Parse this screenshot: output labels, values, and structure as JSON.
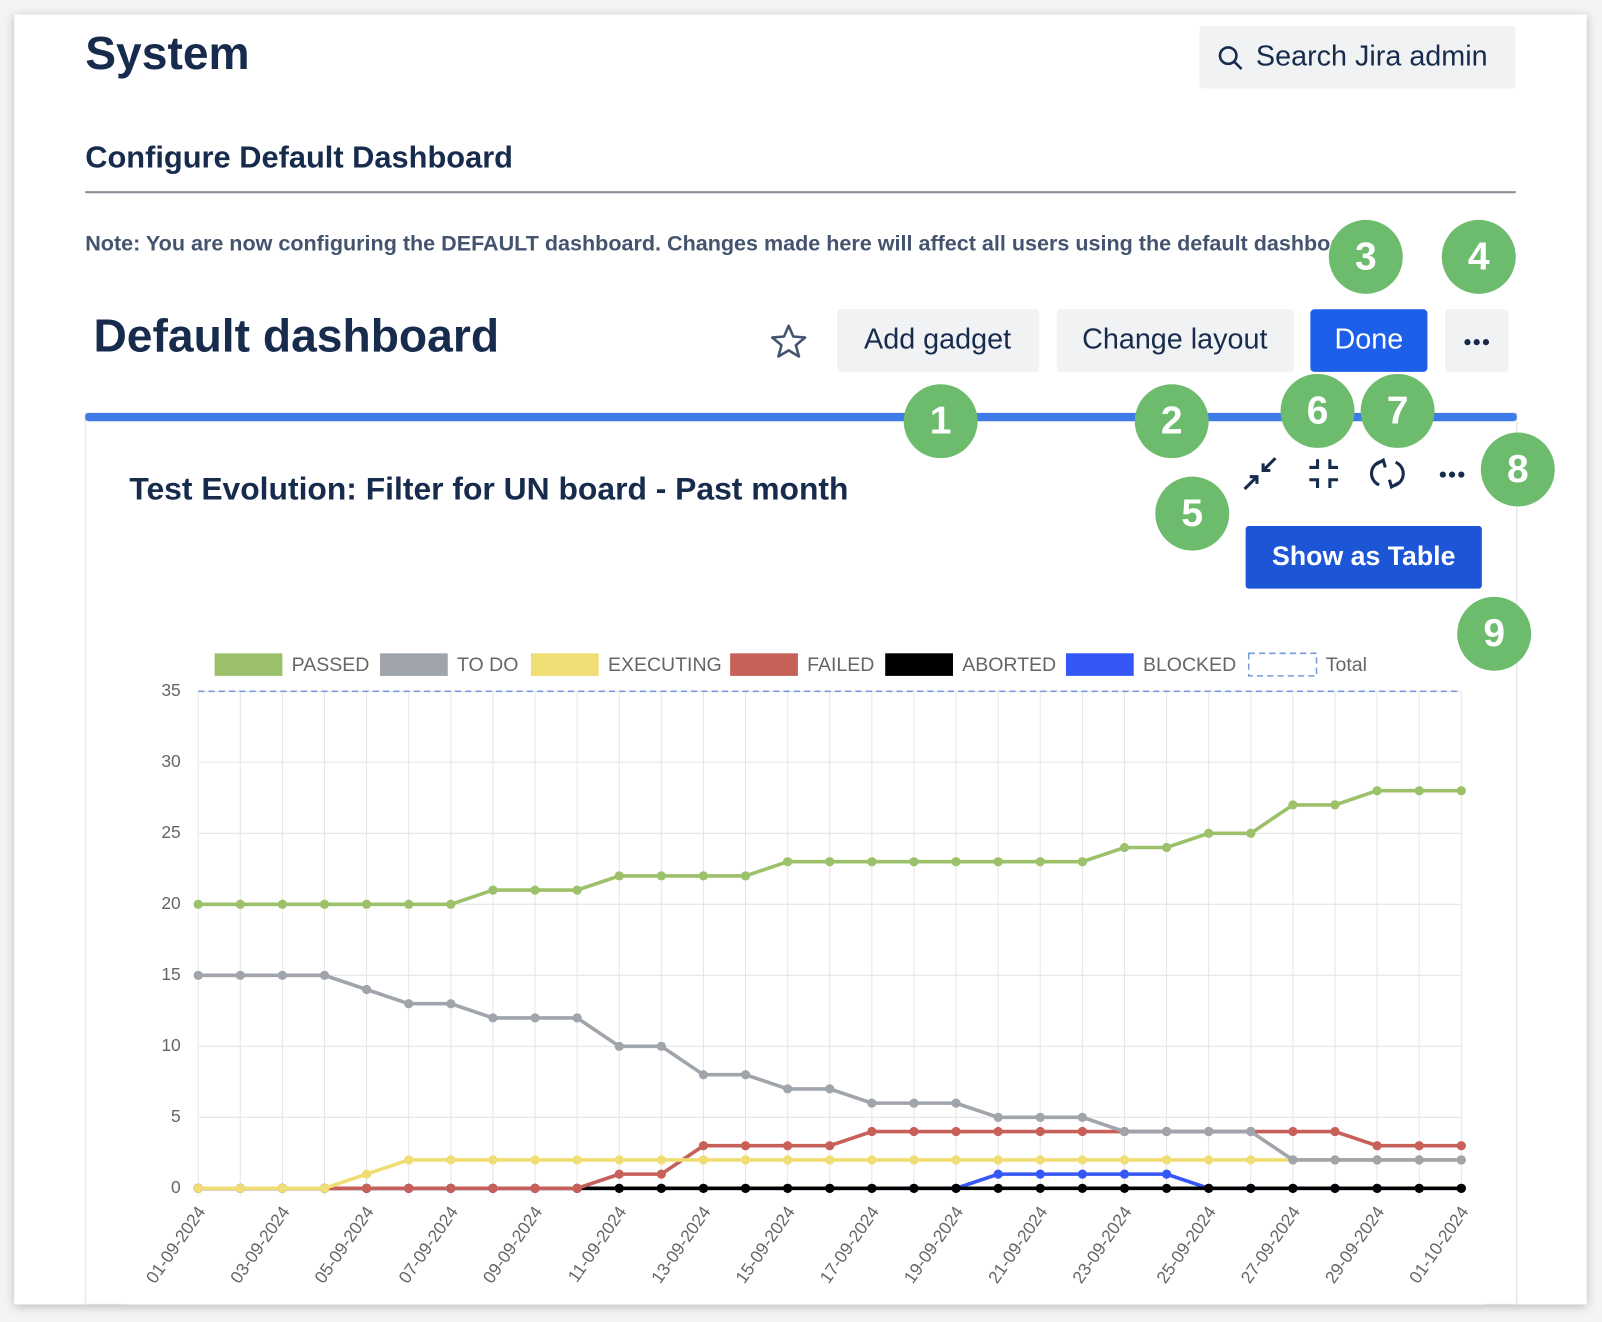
{
  "header": {
    "title": "System",
    "search": "Search Jira admin"
  },
  "section": {
    "title": "Configure Default Dashboard",
    "note": "Note: You are now configuring the DEFAULT dashboard. Changes made here will affect all users using the default dashboard."
  },
  "dashboard": {
    "title": "Default dashboard",
    "buttons": [
      "Add gadget",
      "Change layout",
      "Done"
    ]
  },
  "gadget": {
    "title": "Test Evolution: Filter for UN board - Past month",
    "button": "Show as Table"
  },
  "callouts": [
    1,
    2,
    3,
    4,
    5,
    6,
    7,
    8,
    9
  ],
  "chart_data": {
    "type": "line",
    "categories": [
      "01-09-2024",
      null,
      "03-09-2024",
      null,
      "05-09-2024",
      null,
      "07-09-2024",
      null,
      "09-09-2024",
      null,
      "11-09-2024",
      null,
      "13-09-2024",
      null,
      "15-09-2024",
      null,
      "17-09-2024",
      null,
      "19-09-2024",
      null,
      "21-09-2024",
      null,
      "23-09-2024",
      null,
      "25-09-2024",
      null,
      "27-09-2024",
      null,
      "29-09-2024",
      null,
      "01-10-2024"
    ],
    "series": [
      {
        "name": "PASSED",
        "color": "#9dc16b",
        "values": [
          20,
          20,
          20,
          20,
          20,
          20,
          20,
          21,
          21,
          21,
          22,
          22,
          22,
          22,
          23,
          23,
          23,
          23,
          23,
          23,
          23,
          23,
          24,
          24,
          25,
          25,
          27,
          27,
          28,
          28,
          28
        ]
      },
      {
        "name": "TO DO",
        "color": "#a0a4ab",
        "values": [
          15,
          15,
          15,
          15,
          14,
          13,
          13,
          12,
          12,
          12,
          10,
          10,
          8,
          8,
          7,
          7,
          6,
          6,
          6,
          5,
          5,
          5,
          4,
          4,
          4,
          4,
          2,
          2,
          2,
          2,
          2
        ]
      },
      {
        "name": "EXECUTING",
        "color": "#f0de74",
        "values": [
          0,
          0,
          0,
          0,
          1,
          2,
          2,
          2,
          2,
          2,
          2,
          2,
          2,
          2,
          2,
          2,
          2,
          2,
          2,
          2,
          2,
          2,
          2,
          2,
          2,
          2,
          2,
          2,
          2,
          2,
          2
        ]
      },
      {
        "name": "FAILED",
        "color": "#c8605a",
        "values": [
          0,
          0,
          0,
          0,
          0,
          0,
          0,
          0,
          0,
          0,
          1,
          1,
          3,
          3,
          3,
          3,
          4,
          4,
          4,
          4,
          4,
          4,
          4,
          4,
          4,
          4,
          4,
          4,
          3,
          3,
          3
        ]
      },
      {
        "name": "ABORTED",
        "color": "#000000",
        "values": [
          0,
          0,
          0,
          0,
          0,
          0,
          0,
          0,
          0,
          0,
          0,
          0,
          0,
          0,
          0,
          0,
          0,
          0,
          0,
          0,
          0,
          0,
          0,
          0,
          0,
          0,
          0,
          0,
          0,
          0,
          0
        ]
      },
      {
        "name": "BLOCKED",
        "color": "#3457f5",
        "values": [
          0,
          0,
          0,
          0,
          0,
          0,
          0,
          0,
          0,
          0,
          0,
          0,
          0,
          0,
          0,
          0,
          0,
          0,
          0,
          1,
          1,
          1,
          1,
          1,
          0,
          0,
          0,
          0,
          0,
          0,
          0
        ]
      },
      {
        "name": "Total",
        "color": "#7a9ad8",
        "dash": true,
        "values": [
          35,
          35,
          35,
          35,
          35,
          35,
          35,
          35,
          35,
          35,
          35,
          35,
          35,
          35,
          35,
          35,
          35,
          35,
          35,
          35,
          35,
          35,
          35,
          35,
          35,
          35,
          35,
          35,
          35,
          35,
          35
        ]
      }
    ],
    "ylim": [
      0,
      35
    ],
    "yticks": [
      0,
      5,
      10,
      15,
      20,
      25,
      30,
      35
    ],
    "grid": true,
    "legend": "top"
  }
}
